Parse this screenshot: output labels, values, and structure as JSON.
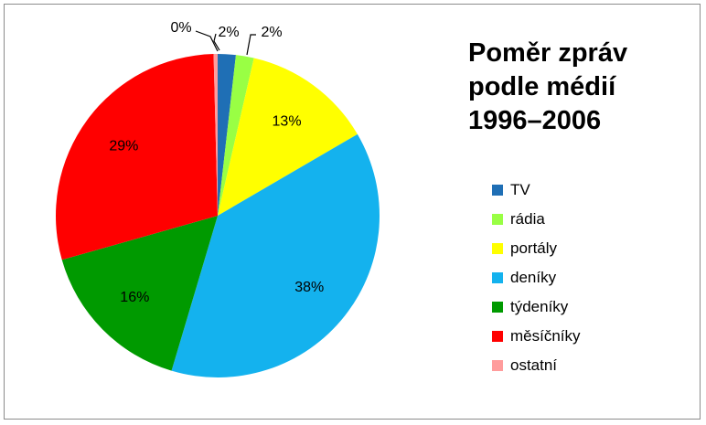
{
  "chart_data": {
    "type": "pie",
    "title_lines": [
      "Poměr zpráv",
      "podle médií",
      "1996–2006"
    ],
    "legend_position": "right",
    "slices": [
      {
        "name": "TV",
        "value": 1.8,
        "label": "2%",
        "color": "#1f6fb5"
      },
      {
        "name": "rádia",
        "value": 1.8,
        "label": "2%",
        "color": "#99ff44"
      },
      {
        "name": "portály",
        "value": 13,
        "label": "13%",
        "color": "#ffff00"
      },
      {
        "name": "deníky",
        "value": 38,
        "label": "38%",
        "color": "#14b2ee"
      },
      {
        "name": "týdeníky",
        "value": 16,
        "label": "16%",
        "color": "#009a00"
      },
      {
        "name": "měsíčníky",
        "value": 29,
        "label": "29%",
        "color": "#ff0000"
      },
      {
        "name": "ostatní",
        "value": 0.4,
        "label": "0%",
        "color": "#ff9c9c"
      }
    ]
  }
}
